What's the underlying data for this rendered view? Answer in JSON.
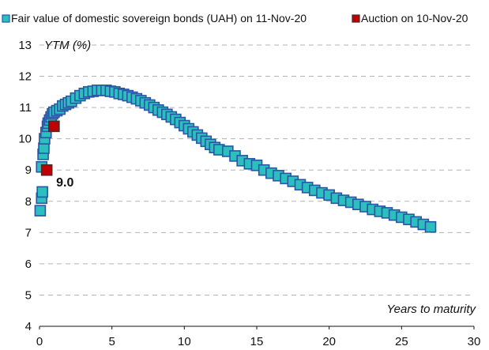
{
  "chart_data": {
    "type": "scatter",
    "title": "",
    "xlabel": "Years to maturity",
    "ylabel": "YTM (%)",
    "xlim": [
      0,
      30
    ],
    "ylim": [
      4,
      13
    ],
    "xticks": [
      "0",
      "5",
      "10",
      "15",
      "20",
      "25",
      "30"
    ],
    "yticks": [
      "4",
      "5",
      "6",
      "7",
      "8",
      "9",
      "10",
      "11",
      "12",
      "13"
    ],
    "grid": "horizontal dashed",
    "legend_position": "top",
    "series": [
      {
        "name": "Fair value of domestic sovereign bonds (UAH) on 11-Nov-20",
        "color": "#2bbfbf",
        "edge_color": "#2a56a6",
        "marker": "square",
        "points": [
          [
            0.05,
            7.7
          ],
          [
            0.15,
            8.1
          ],
          [
            0.2,
            8.3
          ],
          [
            0.15,
            9.1
          ],
          [
            0.25,
            9.5
          ],
          [
            0.3,
            9.7
          ],
          [
            0.35,
            10.0
          ],
          [
            0.45,
            10.2
          ],
          [
            0.55,
            10.4
          ],
          [
            0.6,
            10.5
          ],
          [
            0.7,
            10.6
          ],
          [
            0.8,
            10.7
          ],
          [
            0.9,
            10.8
          ],
          [
            1.0,
            10.85
          ],
          [
            1.2,
            10.9
          ],
          [
            1.4,
            10.95
          ],
          [
            1.6,
            11.05
          ],
          [
            1.8,
            11.1
          ],
          [
            2.0,
            11.15
          ],
          [
            2.2,
            11.2
          ],
          [
            2.5,
            11.3
          ],
          [
            2.8,
            11.38
          ],
          [
            3.1,
            11.45
          ],
          [
            3.4,
            11.5
          ],
          [
            3.7,
            11.52
          ],
          [
            4.0,
            11.55
          ],
          [
            4.3,
            11.55
          ],
          [
            4.6,
            11.55
          ],
          [
            4.9,
            11.52
          ],
          [
            5.2,
            11.5
          ],
          [
            5.5,
            11.45
          ],
          [
            5.8,
            11.42
          ],
          [
            6.1,
            11.38
          ],
          [
            6.4,
            11.33
          ],
          [
            6.7,
            11.28
          ],
          [
            7.0,
            11.22
          ],
          [
            7.3,
            11.15
          ],
          [
            7.6,
            11.08
          ],
          [
            7.9,
            11.0
          ],
          [
            8.2,
            10.92
          ],
          [
            8.5,
            10.85
          ],
          [
            8.8,
            10.78
          ],
          [
            9.1,
            10.7
          ],
          [
            9.4,
            10.62
          ],
          [
            9.7,
            10.52
          ],
          [
            10.0,
            10.42
          ],
          [
            10.3,
            10.32
          ],
          [
            10.6,
            10.22
          ],
          [
            10.9,
            10.12
          ],
          [
            11.2,
            10.02
          ],
          [
            11.5,
            9.92
          ],
          [
            11.8,
            9.82
          ],
          [
            12.1,
            9.72
          ],
          [
            12.4,
            9.65
          ],
          [
            13.0,
            9.6
          ],
          [
            13.5,
            9.45
          ],
          [
            14.0,
            9.3
          ],
          [
            14.5,
            9.2
          ],
          [
            15.0,
            9.15
          ],
          [
            15.5,
            9.0
          ],
          [
            16.0,
            8.9
          ],
          [
            16.5,
            8.82
          ],
          [
            17.0,
            8.73
          ],
          [
            17.5,
            8.64
          ],
          [
            18.0,
            8.53
          ],
          [
            18.5,
            8.44
          ],
          [
            19.0,
            8.35
          ],
          [
            19.5,
            8.27
          ],
          [
            20.0,
            8.2
          ],
          [
            20.5,
            8.1
          ],
          [
            21.0,
            8.03
          ],
          [
            21.5,
            7.97
          ],
          [
            22.0,
            7.9
          ],
          [
            22.5,
            7.83
          ],
          [
            23.0,
            7.74
          ],
          [
            23.5,
            7.68
          ],
          [
            24.0,
            7.63
          ],
          [
            24.5,
            7.56
          ],
          [
            25.0,
            7.49
          ],
          [
            25.5,
            7.42
          ],
          [
            26.0,
            7.34
          ],
          [
            26.5,
            7.26
          ],
          [
            27.0,
            7.18
          ]
        ]
      },
      {
        "name": "Auction on 10-Nov-20",
        "color": "#c00000",
        "edge_color": "#4a2a2a",
        "marker": "square",
        "points": [
          [
            0.5,
            9.0
          ],
          [
            1.0,
            10.4
          ]
        ]
      }
    ],
    "annotations": [
      {
        "text": "9.0",
        "x": 0.5,
        "y": 9.0
      }
    ]
  }
}
